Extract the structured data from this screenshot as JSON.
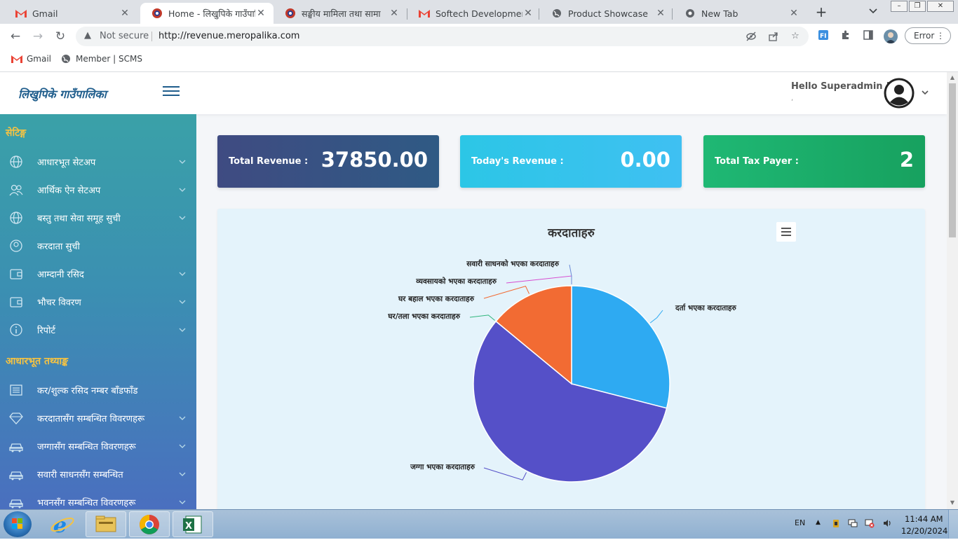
{
  "browser": {
    "tabs": [
      {
        "title": "Gmail",
        "favicon": "gmail-icon",
        "active": false
      },
      {
        "title": "Home - लिखुपिके गाउँपालि",
        "favicon": "nepal-emblem-icon",
        "active": true
      },
      {
        "title": "सङ्घीय मामिला तथा सामा",
        "favicon": "nepal-emblem-icon",
        "active": false
      },
      {
        "title": "Softech Development -",
        "favicon": "gmail-icon",
        "active": false
      },
      {
        "title": "Product Showcase",
        "favicon": "globe-icon",
        "active": false
      },
      {
        "title": "New Tab",
        "favicon": "chrome-icon",
        "active": false
      }
    ],
    "security_label": "Not secure",
    "url": "http://revenue.meropalika.com",
    "error_button": "Error",
    "bookmarks": [
      {
        "label": "Gmail",
        "icon": "gmail-icon"
      },
      {
        "label": "Member | SCMS",
        "icon": "globe-icon"
      }
    ]
  },
  "header": {
    "brand": "लिखुपिके गाउँपालिका",
    "greeting": "Hello Superadmin !",
    "greeting_sub": ","
  },
  "sidebar": {
    "sections": [
      {
        "heading": "सेटिङ्ग",
        "items": [
          {
            "label": "आधारभूत सेटअप",
            "icon": "globe-icon",
            "expandable": true
          },
          {
            "label": "आर्थिक ऐन सेटअप",
            "icon": "users-icon",
            "expandable": true
          },
          {
            "label": "बस्तु तथा सेवा समूह सुची",
            "icon": "globe-icon",
            "expandable": true
          },
          {
            "label": "करदाता सुची",
            "icon": "user-icon",
            "expandable": false
          },
          {
            "label": "आम्दानी रसिद",
            "icon": "wallet-icon",
            "expandable": true
          },
          {
            "label": "भौचर विवरण",
            "icon": "wallet-icon",
            "expandable": true
          },
          {
            "label": "रिपोर्ट",
            "icon": "info-icon",
            "expandable": true
          }
        ]
      },
      {
        "heading": "आधारभूत तथ्याङ्क",
        "items": [
          {
            "label": "कर/शुल्क रसिद नम्बर बाँडफाँड",
            "icon": "newspaper-icon",
            "expandable": false
          },
          {
            "label": "करदातासँग सम्बन्धित विवरणहरू",
            "icon": "diamond-icon",
            "expandable": true
          },
          {
            "label": "जग्गासँग सम्बन्धित विवरणहरू",
            "icon": "car-icon",
            "expandable": true
          },
          {
            "label": "सवारी साधनसँग सम्बन्धित",
            "icon": "car-icon",
            "expandable": true
          },
          {
            "label": "भवनसँग सम्बन्धित विवरणहरू",
            "icon": "car-icon",
            "expandable": true
          }
        ]
      }
    ]
  },
  "cards": [
    {
      "label": "Total Revenue :",
      "value": "37850.00"
    },
    {
      "label": "Today's Revenue :",
      "value": "0.00"
    },
    {
      "label": "Total Tax Payer :",
      "value": "2"
    }
  ],
  "chart_data": {
    "type": "pie",
    "title": "करदाताहरु",
    "slices": [
      {
        "label": "दर्ता भएका करदाताहरु",
        "value": 29,
        "color": "#2eaaf2"
      },
      {
        "label": "जग्गा भएका करदाताहरु",
        "value": 57,
        "color": "#5550c8"
      },
      {
        "label": "घर/तला भएका करदाताहरु",
        "value": 0,
        "color": "#2fb67c"
      },
      {
        "label": "घर बहाल भएका करदाताहरु",
        "value": 14,
        "color": "#f26b33"
      },
      {
        "label": "व्यवसायको भएका करदाताहरु",
        "value": 0,
        "color": "#d64bd0"
      },
      {
        "label": "सवारी साधनको भएका करदाताहरु",
        "value": 0,
        "color": "#6b8ad6"
      }
    ]
  },
  "taskbar": {
    "language": "EN",
    "time": "11:44 AM",
    "date": "12/20/2024"
  }
}
